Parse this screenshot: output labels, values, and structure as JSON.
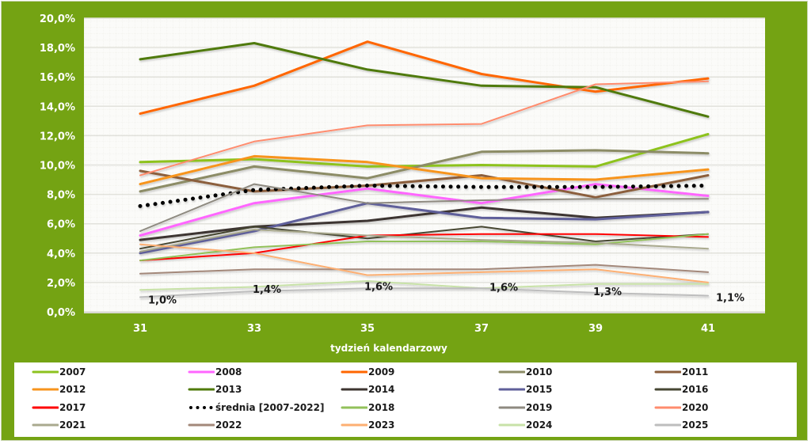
{
  "chart_data": {
    "type": "line",
    "title": "",
    "xlabel": "tydzień kalendarzowy",
    "ylabel": "",
    "x": [
      31,
      33,
      35,
      37,
      39,
      41
    ],
    "x_tick_labels": [
      "31",
      "33",
      "35",
      "37",
      "39",
      "41"
    ],
    "ylim": [
      0,
      20
    ],
    "y_ticks": [
      0,
      2,
      4,
      6,
      8,
      10,
      12,
      14,
      16,
      18,
      20
    ],
    "y_tick_labels": [
      "0,0%",
      "2,0%",
      "4,0%",
      "6,0%",
      "8,0%",
      "10,0%",
      "12,0%",
      "14,0%",
      "16,0%",
      "18,0%",
      "20,0%"
    ],
    "y_unit": "%",
    "grid": true,
    "legend_position": "bottom",
    "series": [
      {
        "name": "2007",
        "color": "#8DC21F",
        "style": "solid",
        "width": 3,
        "values": [
          10.2,
          10.4,
          9.9,
          10.0,
          9.9,
          12.1
        ]
      },
      {
        "name": "2008",
        "color": "#FF66FF",
        "style": "solid",
        "width": 3,
        "values": [
          5.2,
          7.4,
          8.4,
          7.4,
          8.7,
          7.9
        ]
      },
      {
        "name": "2009",
        "color": "#FF6600",
        "style": "solid",
        "width": 3,
        "values": [
          13.5,
          15.4,
          18.4,
          16.2,
          15.0,
          15.9
        ]
      },
      {
        "name": "2010",
        "color": "#8C8C66",
        "style": "solid",
        "width": 3,
        "values": [
          8.2,
          9.9,
          9.1,
          10.9,
          11.0,
          10.8
        ]
      },
      {
        "name": "2011",
        "color": "#8B5E3C",
        "style": "solid",
        "width": 3,
        "values": [
          9.6,
          8.2,
          8.6,
          9.3,
          7.8,
          9.3
        ]
      },
      {
        "name": "2012",
        "color": "#F7941D",
        "style": "solid",
        "width": 3,
        "values": [
          8.7,
          10.6,
          10.2,
          9.1,
          9.0,
          9.7
        ]
      },
      {
        "name": "2013",
        "color": "#4F7A0A",
        "style": "solid",
        "width": 3,
        "values": [
          17.2,
          18.3,
          16.5,
          15.4,
          15.3,
          13.3
        ]
      },
      {
        "name": "2014",
        "color": "#3D3530",
        "style": "solid",
        "width": 3,
        "values": [
          4.9,
          5.8,
          6.2,
          7.1,
          6.4,
          6.8
        ]
      },
      {
        "name": "2015",
        "color": "#5F5F9A",
        "style": "solid",
        "width": 3,
        "values": [
          4.0,
          5.5,
          7.4,
          6.4,
          6.3,
          6.8
        ]
      },
      {
        "name": "2016",
        "color": "#474733",
        "style": "solid",
        "width": 2,
        "values": [
          4.3,
          5.8,
          5.0,
          5.8,
          4.8,
          5.3
        ]
      },
      {
        "name": "2017",
        "color": "#FF0000",
        "style": "solid",
        "width": 2,
        "values": [
          3.5,
          4.0,
          5.2,
          5.3,
          5.3,
          5.1
        ]
      },
      {
        "name": "średnia [2007-2022]",
        "color": "#000000",
        "style": "dotted",
        "width": 4,
        "values": [
          7.2,
          8.3,
          8.6,
          8.5,
          8.5,
          8.6
        ]
      },
      {
        "name": "2018",
        "color": "#92C15A",
        "style": "solid",
        "width": 2,
        "values": [
          3.5,
          4.4,
          4.8,
          4.8,
          4.6,
          5.3
        ]
      },
      {
        "name": "2019",
        "color": "#8E8A80",
        "style": "solid",
        "width": 2,
        "values": [
          5.5,
          8.7,
          7.4,
          7.6,
          7.7,
          7.7
        ]
      },
      {
        "name": "2020",
        "color": "#FF8C6E",
        "style": "solid",
        "width": 2,
        "values": [
          9.3,
          11.6,
          12.7,
          12.8,
          15.5,
          15.7
        ]
      },
      {
        "name": "2021",
        "color": "#A9A98E",
        "style": "solid",
        "width": 2,
        "values": [
          4.1,
          5.6,
          5.2,
          4.9,
          4.7,
          4.3
        ]
      },
      {
        "name": "2022",
        "color": "#A3887A",
        "style": "solid",
        "width": 2,
        "values": [
          2.6,
          2.9,
          2.9,
          2.9,
          3.2,
          2.7
        ]
      },
      {
        "name": "2023",
        "color": "#FDAF72",
        "style": "solid",
        "width": 2,
        "values": [
          4.6,
          4.0,
          2.5,
          2.7,
          2.9,
          2.0
        ]
      },
      {
        "name": "2024",
        "color": "#C8E2A8",
        "style": "solid",
        "width": 2,
        "values": [
          1.5,
          1.7,
          2.1,
          1.6,
          1.9,
          1.9
        ]
      },
      {
        "name": "2025",
        "color": "#BDBDBD",
        "style": "solid",
        "width": 2,
        "values": [
          1.0,
          1.4,
          1.6,
          1.6,
          1.3,
          1.1
        ],
        "data_labels": [
          "1,0%",
          "1,4%",
          "1,6%",
          "1,6%",
          "1,3%",
          "1,1%"
        ]
      }
    ]
  },
  "legend": {
    "items": [
      {
        "label": "2007",
        "series": 0
      },
      {
        "label": "2008",
        "series": 1
      },
      {
        "label": "2009",
        "series": 2
      },
      {
        "label": "2010",
        "series": 3
      },
      {
        "label": "2011",
        "series": 4
      },
      {
        "label": "2012",
        "series": 5
      },
      {
        "label": "2013",
        "series": 6
      },
      {
        "label": "2014",
        "series": 7
      },
      {
        "label": "2015",
        "series": 8
      },
      {
        "label": "2016",
        "series": 9
      },
      {
        "label": "2017",
        "series": 10
      },
      {
        "label": "średnia [2007-2022]",
        "series": 11
      },
      {
        "label": "2018",
        "series": 12
      },
      {
        "label": "2019",
        "series": 13
      },
      {
        "label": "2020",
        "series": 14
      },
      {
        "label": "2021",
        "series": 15
      },
      {
        "label": "2022",
        "series": 16
      },
      {
        "label": "2023",
        "series": 17
      },
      {
        "label": "2024",
        "series": 18
      },
      {
        "label": "2025",
        "series": 19
      }
    ]
  },
  "colors": {
    "frame_background": "#74A313",
    "plot_background": "#FBFBF9",
    "grid_major": "#E4E4E0",
    "grid_minor": "#EEEEEA",
    "tick_text": "#FFFFFF"
  }
}
